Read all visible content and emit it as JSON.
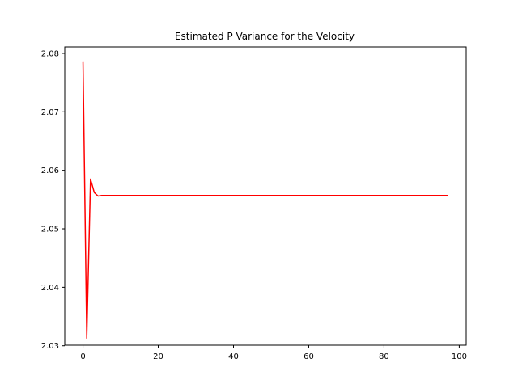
{
  "chart_data": {
    "type": "line",
    "title": "Estimated P Variance for the Velocity",
    "xlabel": "",
    "ylabel": "",
    "xlim": [
      -4.85,
      101.85
    ],
    "ylim": [
      2.0301,
      2.0811
    ],
    "grid": false,
    "x_ticks": [
      0,
      20,
      40,
      60,
      80,
      100
    ],
    "x_tick_labels": [
      "0",
      "20",
      "40",
      "60",
      "80",
      "100"
    ],
    "y_ticks": [
      2.03,
      2.04,
      2.05,
      2.06,
      2.07,
      2.08
    ],
    "y_tick_labels": [
      "2.03",
      "2.04",
      "2.05",
      "2.06",
      "2.07",
      "2.08"
    ],
    "series": [
      {
        "color": "#ff0000",
        "points": [
          [
            0,
            2.0785
          ],
          [
            1,
            2.0313
          ],
          [
            2,
            2.0585
          ],
          [
            3,
            2.0562
          ],
          [
            4,
            2.0556
          ],
          [
            5,
            2.0557
          ],
          [
            10,
            2.0557
          ],
          [
            97,
            2.0557
          ]
        ]
      }
    ]
  }
}
